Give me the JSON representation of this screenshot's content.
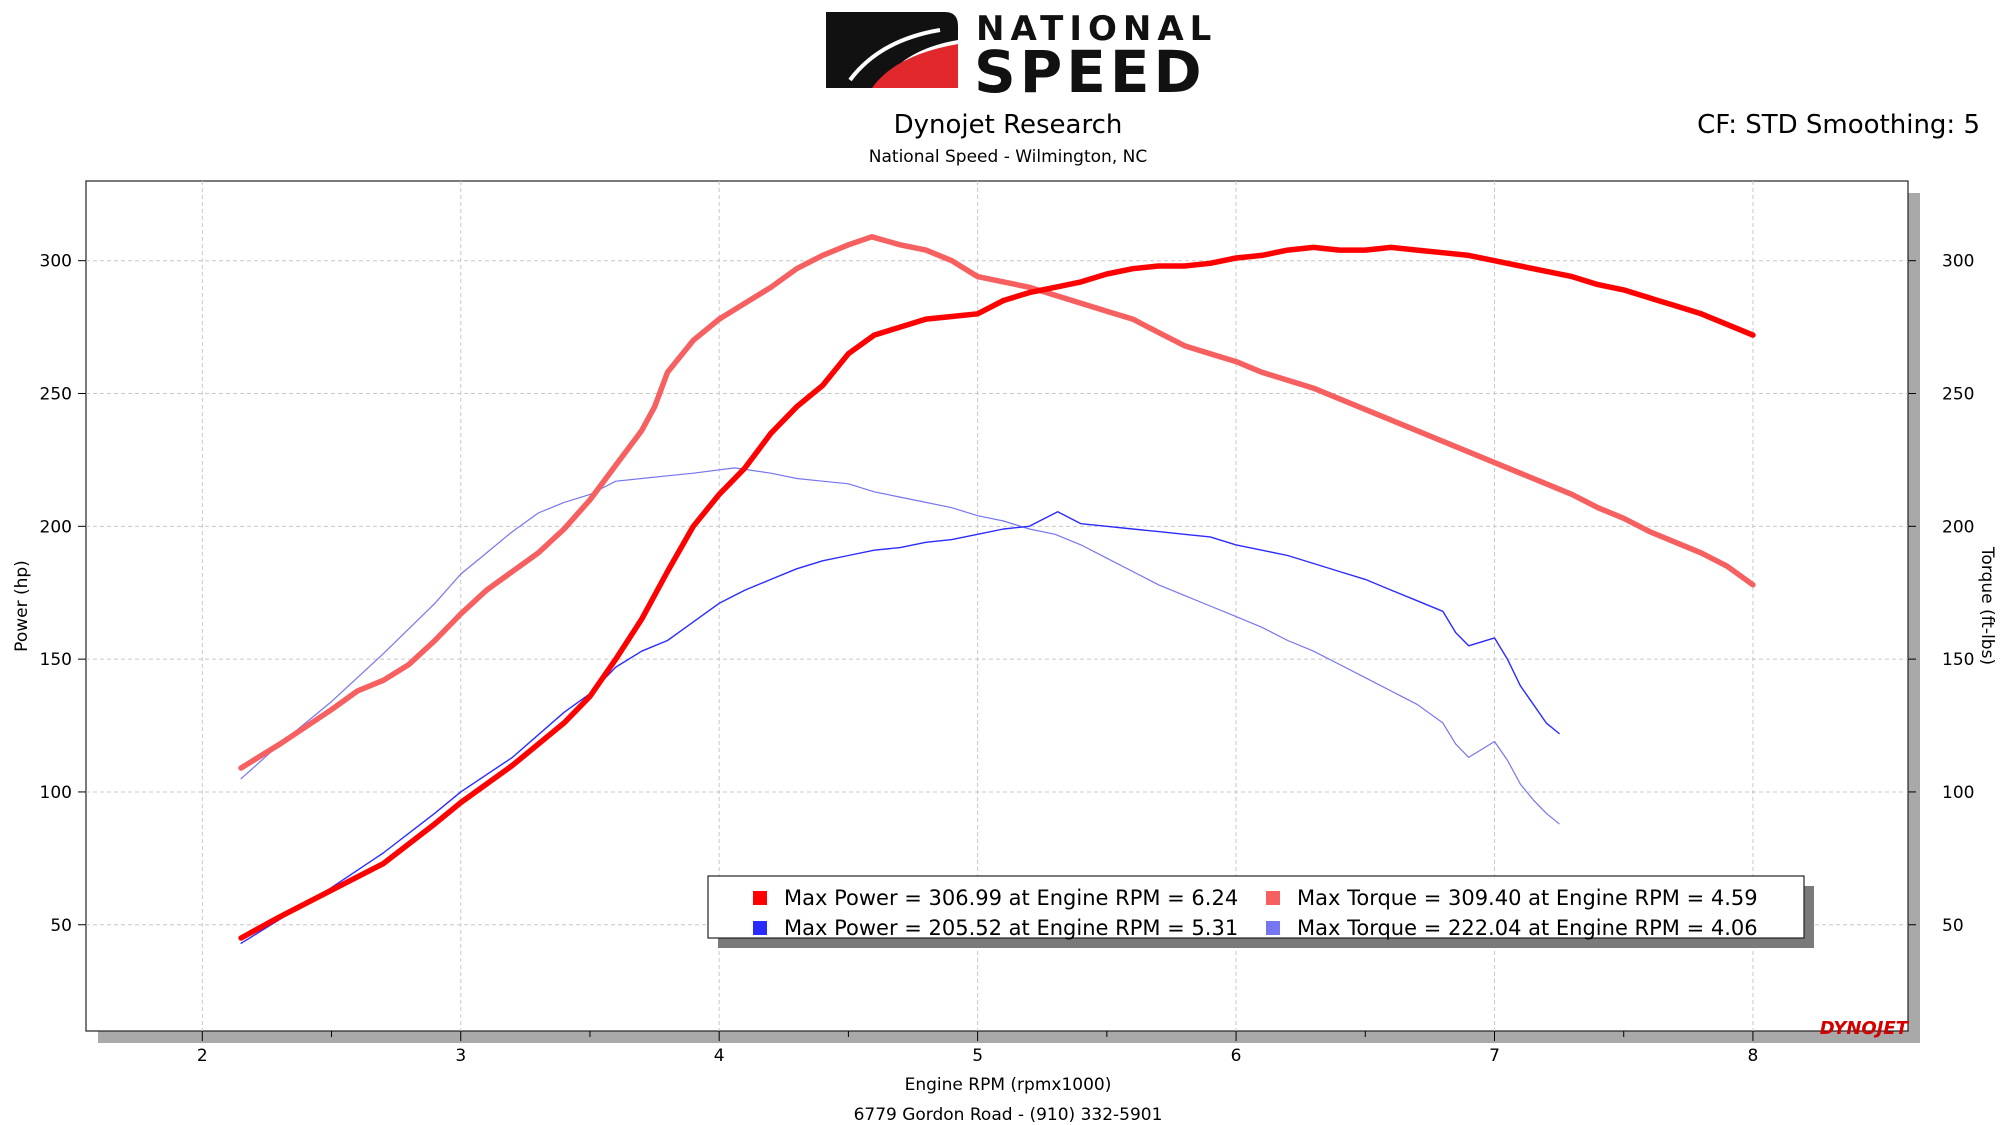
{
  "header": {
    "logo_line1": "NATIONAL",
    "logo_line2": "SPEED",
    "title": "Dynojet Research",
    "subtitle": "National Speed - Wilmington, NC",
    "correction": "CF: STD Smoothing: 5",
    "footer": "6779 Gordon Road - (910) 332-5901",
    "watermark": "DYNOJET"
  },
  "colors": {
    "run1_power": "#ff0000",
    "run1_torque": "#f76060",
    "run2_power": "#2b2bff",
    "run2_torque": "#7676f0",
    "grid": "#c8c8c8",
    "logo_red": "#e0282d"
  },
  "chart_data": {
    "type": "line",
    "xlabel": "Engine RPM (rpmx1000)",
    "ylabel_left": "Power (hp)",
    "ylabel_right": "Torque (ft-lbs)",
    "xlim": [
      1.55,
      8.6
    ],
    "ylim": [
      10,
      330
    ],
    "x_ticks": [
      "2",
      "3",
      "4",
      "5",
      "6",
      "7",
      "8"
    ],
    "y_ticks": [
      "50",
      "100",
      "150",
      "200",
      "250",
      "300"
    ],
    "grid": true,
    "legend_placement": "bottom-right",
    "series": [
      {
        "key": "run1_power",
        "axis": "left",
        "points": [
          [
            2.15,
            45
          ],
          [
            2.3,
            53
          ],
          [
            2.5,
            63
          ],
          [
            2.7,
            73
          ],
          [
            2.9,
            88
          ],
          [
            3.0,
            96
          ],
          [
            3.2,
            110
          ],
          [
            3.4,
            126
          ],
          [
            3.5,
            136
          ],
          [
            3.6,
            150
          ],
          [
            3.7,
            165
          ],
          [
            3.8,
            183
          ],
          [
            3.9,
            200
          ],
          [
            4.0,
            212
          ],
          [
            4.1,
            222
          ],
          [
            4.2,
            235
          ],
          [
            4.3,
            245
          ],
          [
            4.4,
            253
          ],
          [
            4.5,
            265
          ],
          [
            4.6,
            272
          ],
          [
            4.7,
            275
          ],
          [
            4.8,
            278
          ],
          [
            4.9,
            279
          ],
          [
            5.0,
            280
          ],
          [
            5.1,
            285
          ],
          [
            5.2,
            288
          ],
          [
            5.3,
            290
          ],
          [
            5.4,
            292
          ],
          [
            5.5,
            295
          ],
          [
            5.6,
            297
          ],
          [
            5.7,
            298
          ],
          [
            5.8,
            298
          ],
          [
            5.9,
            299
          ],
          [
            6.0,
            301
          ],
          [
            6.1,
            302
          ],
          [
            6.2,
            304
          ],
          [
            6.3,
            305
          ],
          [
            6.4,
            304
          ],
          [
            6.5,
            304
          ],
          [
            6.6,
            305
          ],
          [
            6.7,
            304
          ],
          [
            6.8,
            303
          ],
          [
            6.9,
            302
          ],
          [
            7.0,
            300
          ],
          [
            7.1,
            298
          ],
          [
            7.2,
            296
          ],
          [
            7.3,
            294
          ],
          [
            7.4,
            291
          ],
          [
            7.5,
            289
          ],
          [
            7.6,
            286
          ],
          [
            7.7,
            283
          ],
          [
            7.8,
            280
          ],
          [
            7.9,
            276
          ],
          [
            8.0,
            272
          ]
        ]
      },
      {
        "key": "run1_torque",
        "axis": "left",
        "points": [
          [
            2.15,
            109
          ],
          [
            2.3,
            118
          ],
          [
            2.5,
            131
          ],
          [
            2.6,
            138
          ],
          [
            2.7,
            142
          ],
          [
            2.8,
            148
          ],
          [
            2.9,
            157
          ],
          [
            3.0,
            167
          ],
          [
            3.1,
            176
          ],
          [
            3.2,
            183
          ],
          [
            3.3,
            190
          ],
          [
            3.4,
            199
          ],
          [
            3.5,
            210
          ],
          [
            3.6,
            223
          ],
          [
            3.7,
            236
          ],
          [
            3.75,
            245
          ],
          [
            3.8,
            258
          ],
          [
            3.9,
            270
          ],
          [
            4.0,
            278
          ],
          [
            4.1,
            284
          ],
          [
            4.2,
            290
          ],
          [
            4.3,
            297
          ],
          [
            4.4,
            302
          ],
          [
            4.5,
            306
          ],
          [
            4.59,
            309
          ],
          [
            4.7,
            306
          ],
          [
            4.8,
            304
          ],
          [
            4.9,
            300
          ],
          [
            5.0,
            294
          ],
          [
            5.1,
            292
          ],
          [
            5.2,
            290
          ],
          [
            5.3,
            287
          ],
          [
            5.4,
            284
          ],
          [
            5.5,
            281
          ],
          [
            5.6,
            278
          ],
          [
            5.7,
            273
          ],
          [
            5.8,
            268
          ],
          [
            5.9,
            265
          ],
          [
            6.0,
            262
          ],
          [
            6.1,
            258
          ],
          [
            6.2,
            255
          ],
          [
            6.3,
            252
          ],
          [
            6.4,
            248
          ],
          [
            6.5,
            244
          ],
          [
            6.6,
            240
          ],
          [
            6.7,
            236
          ],
          [
            6.8,
            232
          ],
          [
            6.9,
            228
          ],
          [
            7.0,
            224
          ],
          [
            7.1,
            220
          ],
          [
            7.2,
            216
          ],
          [
            7.3,
            212
          ],
          [
            7.4,
            207
          ],
          [
            7.5,
            203
          ],
          [
            7.6,
            198
          ],
          [
            7.7,
            194
          ],
          [
            7.8,
            190
          ],
          [
            7.9,
            185
          ],
          [
            8.0,
            178
          ]
        ]
      },
      {
        "key": "run2_power",
        "axis": "left",
        "points": [
          [
            2.15,
            43
          ],
          [
            2.3,
            52
          ],
          [
            2.5,
            64
          ],
          [
            2.7,
            77
          ],
          [
            2.9,
            92
          ],
          [
            3.0,
            100
          ],
          [
            3.2,
            113
          ],
          [
            3.4,
            130
          ],
          [
            3.5,
            137
          ],
          [
            3.6,
            147
          ],
          [
            3.7,
            153
          ],
          [
            3.8,
            157
          ],
          [
            3.9,
            164
          ],
          [
            4.0,
            171
          ],
          [
            4.1,
            176
          ],
          [
            4.2,
            180
          ],
          [
            4.3,
            184
          ],
          [
            4.4,
            187
          ],
          [
            4.5,
            189
          ],
          [
            4.6,
            191
          ],
          [
            4.7,
            192
          ],
          [
            4.8,
            194
          ],
          [
            4.9,
            195
          ],
          [
            5.0,
            197
          ],
          [
            5.1,
            199
          ],
          [
            5.2,
            200
          ],
          [
            5.31,
            205.5
          ],
          [
            5.4,
            201
          ],
          [
            5.5,
            200
          ],
          [
            5.6,
            199
          ],
          [
            5.7,
            198
          ],
          [
            5.8,
            197
          ],
          [
            5.9,
            196
          ],
          [
            6.0,
            193
          ],
          [
            6.1,
            191
          ],
          [
            6.2,
            189
          ],
          [
            6.3,
            186
          ],
          [
            6.4,
            183
          ],
          [
            6.5,
            180
          ],
          [
            6.6,
            176
          ],
          [
            6.7,
            172
          ],
          [
            6.8,
            168
          ],
          [
            6.85,
            160
          ],
          [
            6.9,
            155
          ],
          [
            7.0,
            158
          ],
          [
            7.05,
            150
          ],
          [
            7.1,
            140
          ],
          [
            7.15,
            133
          ],
          [
            7.2,
            126
          ],
          [
            7.25,
            122
          ]
        ]
      },
      {
        "key": "run2_torque",
        "axis": "left",
        "points": [
          [
            2.15,
            105
          ],
          [
            2.3,
            118
          ],
          [
            2.5,
            134
          ],
          [
            2.7,
            152
          ],
          [
            2.9,
            171
          ],
          [
            3.0,
            182
          ],
          [
            3.1,
            190
          ],
          [
            3.2,
            198
          ],
          [
            3.3,
            205
          ],
          [
            3.4,
            209
          ],
          [
            3.5,
            212
          ],
          [
            3.6,
            217
          ],
          [
            3.7,
            218
          ],
          [
            3.8,
            219
          ],
          [
            3.9,
            220
          ],
          [
            4.06,
            222
          ],
          [
            4.2,
            220
          ],
          [
            4.3,
            218
          ],
          [
            4.4,
            217
          ],
          [
            4.5,
            216
          ],
          [
            4.6,
            213
          ],
          [
            4.7,
            211
          ],
          [
            4.8,
            209
          ],
          [
            4.9,
            207
          ],
          [
            5.0,
            204
          ],
          [
            5.1,
            202
          ],
          [
            5.2,
            199
          ],
          [
            5.3,
            197
          ],
          [
            5.4,
            193
          ],
          [
            5.5,
            188
          ],
          [
            5.6,
            183
          ],
          [
            5.7,
            178
          ],
          [
            5.8,
            174
          ],
          [
            5.9,
            170
          ],
          [
            6.0,
            166
          ],
          [
            6.1,
            162
          ],
          [
            6.2,
            157
          ],
          [
            6.3,
            153
          ],
          [
            6.4,
            148
          ],
          [
            6.5,
            143
          ],
          [
            6.6,
            138
          ],
          [
            6.7,
            133
          ],
          [
            6.8,
            126
          ],
          [
            6.85,
            118
          ],
          [
            6.9,
            113
          ],
          [
            7.0,
            119
          ],
          [
            7.05,
            112
          ],
          [
            7.1,
            103
          ],
          [
            7.15,
            97
          ],
          [
            7.2,
            92
          ],
          [
            7.25,
            88
          ]
        ]
      }
    ],
    "legend": [
      {
        "key": "run1_power",
        "text": "Max Power = 306.99 at Engine RPM = 6.24"
      },
      {
        "key": "run1_torque",
        "text": "Max Torque = 309.40 at Engine RPM = 4.59"
      },
      {
        "key": "run2_power",
        "text": "Max Power = 205.52 at Engine RPM = 5.31"
      },
      {
        "key": "run2_torque",
        "text": "Max Torque = 222.04 at Engine RPM = 4.06"
      }
    ]
  }
}
